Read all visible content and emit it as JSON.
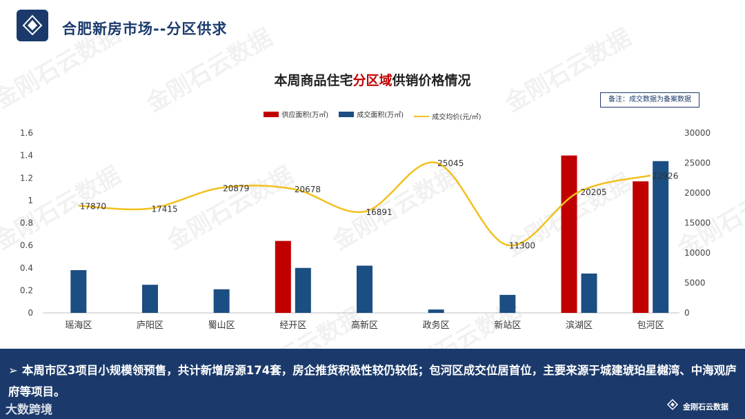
{
  "header": {
    "title": "合肥新房市场--分区供求"
  },
  "watermark_text": "金刚石云数据",
  "chart": {
    "title_pre": "本周商品住宅",
    "title_highlight": "分区域",
    "title_post": "供销价格情况",
    "note": "备注：成交数据为备案数据",
    "colors": {
      "supply": "#c00000",
      "deal": "#1b4e82",
      "price": "#f2c01d"
    }
  },
  "chart_data": {
    "type": "bar",
    "categories": [
      "瑶海区",
      "庐阳区",
      "蜀山区",
      "经开区",
      "高新区",
      "政务区",
      "新站区",
      "滨湖区",
      "包河区"
    ],
    "series": [
      {
        "name": "供应面积(万㎡)",
        "type": "bar",
        "axis": "left",
        "values": [
          0,
          0,
          0,
          0.64,
          0,
          0,
          0,
          1.4,
          1.17
        ]
      },
      {
        "name": "成交面积(万㎡)",
        "type": "bar",
        "axis": "left",
        "values": [
          0.38,
          0.25,
          0.21,
          0.4,
          0.42,
          0.03,
          0.16,
          0.35,
          1.35
        ]
      },
      {
        "name": "成交均价(元/㎡)",
        "type": "line",
        "axis": "right",
        "values": [
          17870,
          17415,
          20879,
          20678,
          16891,
          25045,
          11300,
          20205,
          22926
        ]
      }
    ],
    "left_ticks": [
      "0",
      "0.2",
      "0.4",
      "0.6",
      "0.8",
      "1",
      "1.2",
      "1.4",
      "1.6"
    ],
    "right_ticks": [
      "0",
      "5000",
      "10000",
      "15000",
      "20000",
      "25000",
      "30000"
    ],
    "ylim_left": [
      0,
      1.6
    ],
    "ylim_right": [
      0,
      30000
    ],
    "legend_position": "top"
  },
  "summary": {
    "arrow": "➢",
    "text": "本周市区3项目小规模领预售，共计新增房源174套，房企推货积极性较仍较低；包河区成交位居首位，主要来源于城建琥珀星樾湾、中海观庐府等项目。"
  },
  "source_watermark": "大数跨境",
  "footer": {
    "brand": "金刚石云数据"
  }
}
